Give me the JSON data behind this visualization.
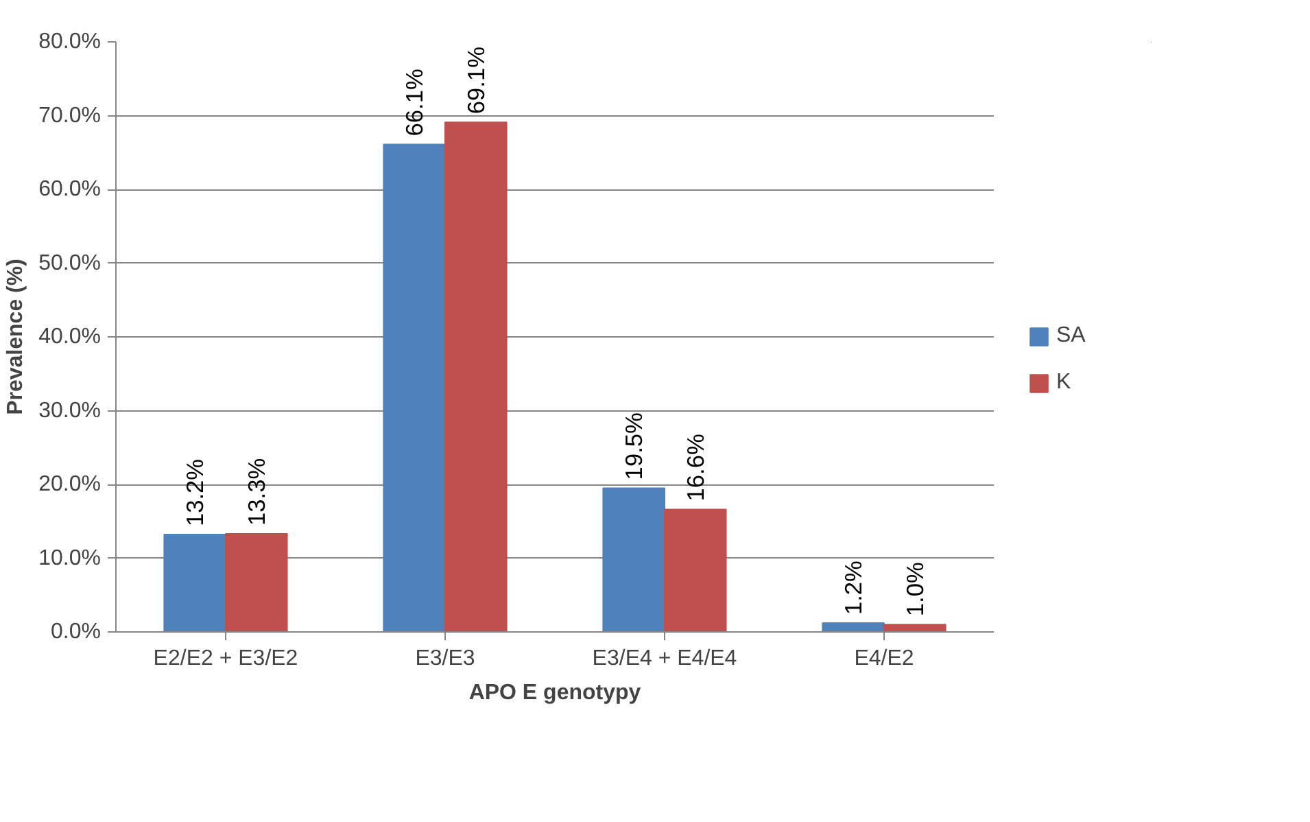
{
  "chart_data": {
    "type": "bar",
    "xlabel": "APO E genotypy",
    "ylabel": "Prevalence (%)",
    "categories": [
      "E2/E2 + E3/E2",
      "E3/E3",
      "E3/E4 + E4/E4",
      "E4/E2"
    ],
    "series": [
      {
        "name": "SA",
        "color": "#4f81bd",
        "values": [
          13.2,
          66.1,
          19.5,
          1.2
        ],
        "value_labels": [
          "13.2%",
          "66.1%",
          "19.5%",
          "1.2%"
        ]
      },
      {
        "name": "K",
        "color": "#c0504d",
        "values": [
          13.3,
          69.1,
          16.6,
          1.0
        ],
        "value_labels": [
          "13.3%",
          "69.1%",
          "16.6%",
          "1.0%"
        ]
      }
    ],
    "ylim": [
      0,
      80
    ],
    "yticks": [
      {
        "value": 0,
        "label": "0.0%"
      },
      {
        "value": 10,
        "label": "10.0%"
      },
      {
        "value": 20,
        "label": "20.0%"
      },
      {
        "value": 30,
        "label": "30.0%"
      },
      {
        "value": 40,
        "label": "40.0%"
      },
      {
        "value": 50,
        "label": "50.0%"
      },
      {
        "value": 60,
        "label": "60.0%"
      },
      {
        "value": 70,
        "label": "70.0%"
      },
      {
        "value": 80,
        "label": "80.0%"
      }
    ],
    "grid": "y",
    "legend": "right"
  }
}
